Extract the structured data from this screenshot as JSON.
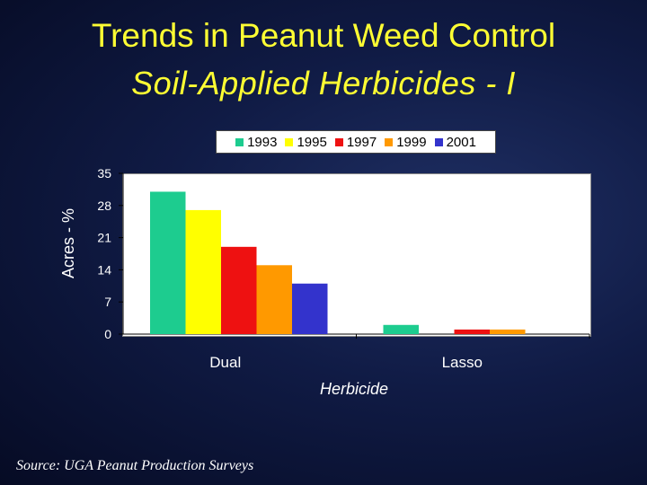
{
  "title": "Trends in Peanut Weed Control",
  "subtitle": "Soil-Applied Herbicides - I",
  "source": "Source: UGA Peanut Production Surveys",
  "chart_data": {
    "type": "bar",
    "categories": [
      "Dual",
      "Lasso"
    ],
    "series": [
      {
        "name": "1993",
        "color": "#1dcc8f",
        "values": [
          31,
          2
        ]
      },
      {
        "name": "1995",
        "color": "#ffff00",
        "values": [
          27,
          0
        ]
      },
      {
        "name": "1997",
        "color": "#ee1111",
        "values": [
          19,
          1
        ]
      },
      {
        "name": "1999",
        "color": "#ff9900",
        "values": [
          15,
          1
        ]
      },
      {
        "name": "2001",
        "color": "#3333cc",
        "values": [
          11,
          0
        ]
      }
    ],
    "xlabel": "Herbicide",
    "ylabel": "Acres - %",
    "ylim": [
      0,
      35
    ],
    "yticks": [
      "0",
      "7",
      "14",
      "21",
      "28",
      "35"
    ],
    "legend_position": "top",
    "grid": false
  }
}
